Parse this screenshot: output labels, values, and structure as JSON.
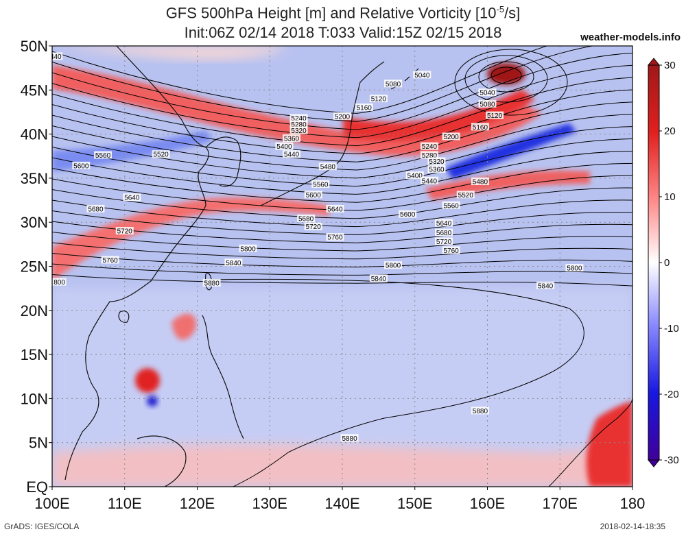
{
  "header": {
    "title_prefix": "GFS 500hPa Height [m] and Relative Vorticity [10",
    "title_exp": "-5",
    "title_suffix": "/s]",
    "subtitle": "Init:06Z 02/14 2018 T:033 Valid:15Z 02/15 2018",
    "site": "weather-models.info"
  },
  "footer": {
    "left": "GrADS: IGES/COLA",
    "right": "2018-02-14-18:35"
  },
  "map": {
    "lat_labels": [
      "50N",
      "45N",
      "40N",
      "35N",
      "30N",
      "25N",
      "20N",
      "15N",
      "10N",
      "5N",
      "EQ"
    ],
    "lat_values": [
      50,
      45,
      40,
      35,
      30,
      25,
      20,
      15,
      10,
      5,
      0
    ],
    "lon_labels": [
      "100E",
      "110E",
      "120E",
      "130E",
      "140E",
      "150E",
      "160E",
      "170E",
      "180"
    ],
    "lon_values": [
      100,
      110,
      120,
      130,
      140,
      150,
      160,
      170,
      180
    ],
    "lon_range": [
      100,
      180
    ],
    "lat_range": [
      0,
      50
    ],
    "grid": "dotted",
    "contour_labels": [
      {
        "text": "5040",
        "lon": 151,
        "lat": 46.7
      },
      {
        "text": "5080",
        "lon": 147,
        "lat": 45.7
      },
      {
        "text": "5120",
        "lon": 145,
        "lat": 44.0
      },
      {
        "text": "5160",
        "lon": 143,
        "lat": 43.0
      },
      {
        "text": "5200",
        "lon": 140,
        "lat": 42.0
      },
      {
        "text": "5040",
        "lon": 160,
        "lat": 44.7
      },
      {
        "text": "5080",
        "lon": 160,
        "lat": 43.4
      },
      {
        "text": "5120",
        "lon": 161,
        "lat": 42.1
      },
      {
        "text": "5160",
        "lon": 159,
        "lat": 40.8
      },
      {
        "text": "5200",
        "lon": 155,
        "lat": 39.7
      },
      {
        "text": "5240",
        "lon": 152,
        "lat": 38.6
      },
      {
        "text": "5280",
        "lon": 152,
        "lat": 37.6
      },
      {
        "text": "5320",
        "lon": 153,
        "lat": 36.9
      },
      {
        "text": "5360",
        "lon": 153,
        "lat": 36.0
      },
      {
        "text": "5400",
        "lon": 150,
        "lat": 35.3
      },
      {
        "text": "5440",
        "lon": 152,
        "lat": 34.7
      },
      {
        "text": "5480",
        "lon": 159,
        "lat": 34.6
      },
      {
        "text": "5520",
        "lon": 157,
        "lat": 33.1
      },
      {
        "text": "5560",
        "lon": 155,
        "lat": 31.9
      },
      {
        "text": "5600",
        "lon": 149,
        "lat": 30.9
      },
      {
        "text": "5640",
        "lon": 154,
        "lat": 29.9
      },
      {
        "text": "5680",
        "lon": 154,
        "lat": 28.8
      },
      {
        "text": "5720",
        "lon": 154,
        "lat": 27.8
      },
      {
        "text": "5760",
        "lon": 155,
        "lat": 26.8
      },
      {
        "text": "5800",
        "lon": 147,
        "lat": 25.1
      },
      {
        "text": "5800",
        "lon": 172,
        "lat": 24.8
      },
      {
        "text": "5840",
        "lon": 145,
        "lat": 23.6
      },
      {
        "text": "5840",
        "lon": 168,
        "lat": 22.8
      },
      {
        "text": "5880",
        "lon": 159,
        "lat": 8.6
      },
      {
        "text": "5880",
        "lon": 141,
        "lat": 5.5
      },
      {
        "text": "5240",
        "lon": 134,
        "lat": 41.8
      },
      {
        "text": "5280",
        "lon": 134,
        "lat": 41.1
      },
      {
        "text": "5320",
        "lon": 134,
        "lat": 40.4
      },
      {
        "text": "5360",
        "lon": 133,
        "lat": 39.5
      },
      {
        "text": "5400",
        "lon": 132,
        "lat": 38.6
      },
      {
        "text": "5440",
        "lon": 133,
        "lat": 37.7
      },
      {
        "text": "5480",
        "lon": 138,
        "lat": 36.3
      },
      {
        "text": "5520",
        "lon": 115,
        "lat": 37.7
      },
      {
        "text": "5560",
        "lon": 107,
        "lat": 37.6
      },
      {
        "text": "5600",
        "lon": 104,
        "lat": 36.4
      },
      {
        "text": "5560",
        "lon": 137,
        "lat": 34.3
      },
      {
        "text": "5600",
        "lon": 136,
        "lat": 33.1
      },
      {
        "text": "5640",
        "lon": 111,
        "lat": 32.8
      },
      {
        "text": "5640",
        "lon": 139,
        "lat": 31.5
      },
      {
        "text": "5680",
        "lon": 106,
        "lat": 31.5
      },
      {
        "text": "5680",
        "lon": 135,
        "lat": 30.4
      },
      {
        "text": "5720",
        "lon": 110,
        "lat": 29.0
      },
      {
        "text": "5720",
        "lon": 136,
        "lat": 29.5
      },
      {
        "text": "5760",
        "lon": 108,
        "lat": 25.7
      },
      {
        "text": "5760",
        "lon": 139,
        "lat": 28.3
      },
      {
        "text": "5800",
        "lon": 127,
        "lat": 27.0
      },
      {
        "text": "5840",
        "lon": 125,
        "lat": 25.4
      },
      {
        "text": "5880",
        "lon": 122,
        "lat": 23.1
      },
      {
        "text": "440",
        "lon": 100.5,
        "lat": 48.8
      },
      {
        "text": "800",
        "lon": 101,
        "lat": 23.2
      }
    ]
  },
  "colorbar": {
    "labels": [
      "30",
      "20",
      "10",
      "0",
      "-10",
      "-20",
      "-30"
    ],
    "values": [
      30,
      20,
      10,
      0,
      -10,
      -20,
      -30
    ],
    "colors": [
      "#8b1010",
      "#e0201e",
      "#ff8080",
      "#ffffff",
      "#8080ff",
      "#1010e0",
      "#3a0090"
    ]
  }
}
